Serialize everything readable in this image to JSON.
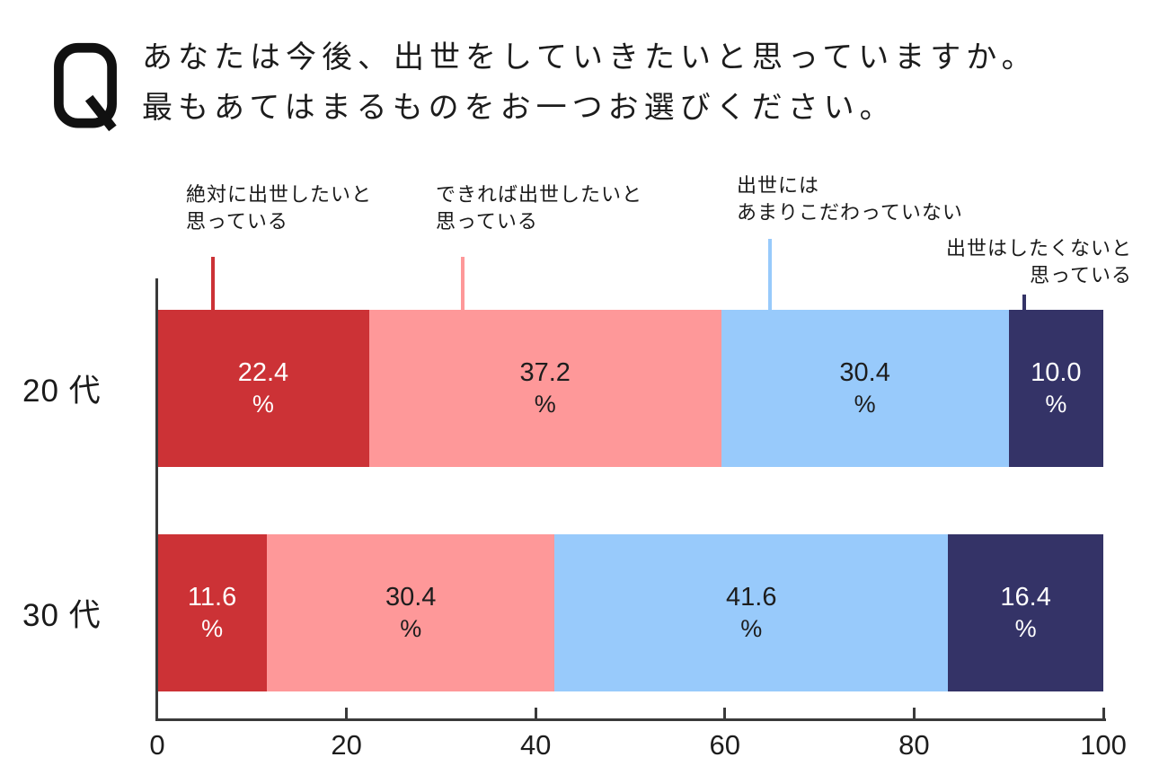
{
  "question": {
    "icon": "Q",
    "line1": "あなたは今後、出世をしていきたいと思っていますか。",
    "line2": "最もあてはまるものをお一つお選びください。"
  },
  "annotations": [
    {
      "line1": "絶対に出世したいと",
      "line2": "思っている"
    },
    {
      "line1": "できれば出世したいと",
      "line2": "思っている"
    },
    {
      "line1": "出世には",
      "line2": "あまりこだわっていない"
    },
    {
      "line1": "出世はしたくないと",
      "line2": "思っている"
    }
  ],
  "chart_data": {
    "type": "bar",
    "orientation": "horizontal",
    "stacked": true,
    "title": "あなたは今後、出世をしていきたいと思っていますか。最もあてはまるものをお一つお選びください。",
    "categories": [
      "20 代",
      "30 代"
    ],
    "series": [
      {
        "name": "絶対に出世したいと思っている",
        "color": "#cc3236",
        "text_color": "#ffffff",
        "values": [
          22.4,
          11.6
        ]
      },
      {
        "name": "できれば出世したいと思っている",
        "color": "#fe9899",
        "text_color": "#1d1d1d",
        "values": [
          37.2,
          30.4
        ]
      },
      {
        "name": "出世にはあまりこだわっていない",
        "color": "#98cafb",
        "text_color": "#1d1d1d",
        "values": [
          30.4,
          41.6
        ]
      },
      {
        "name": "出世はしたくないと思っている",
        "color": "#343367",
        "text_color": "#ffffff",
        "values": [
          10.0,
          16.4
        ]
      }
    ],
    "value_suffix": "%",
    "x_ticks": [
      0,
      20,
      40,
      60,
      80,
      100
    ],
    "xlim": [
      0,
      100
    ],
    "grid": false,
    "legend_position": "above-as-callouts"
  }
}
